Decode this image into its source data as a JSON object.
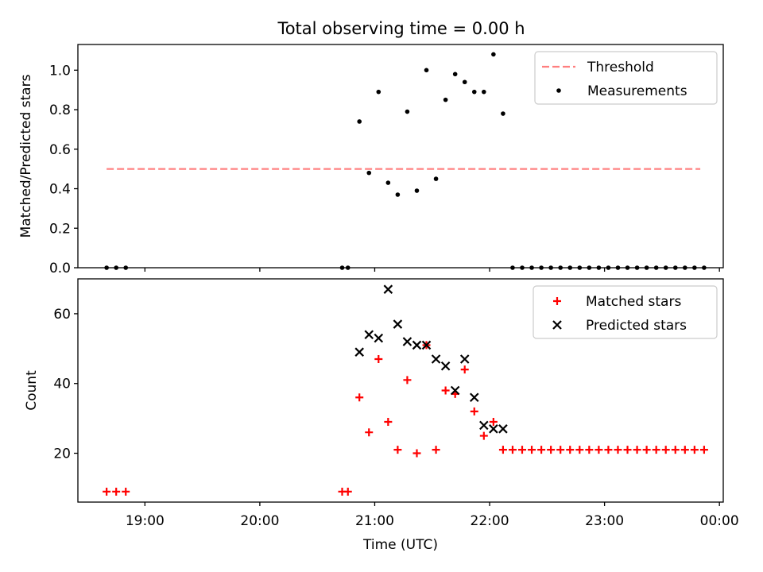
{
  "figure_title": "Total observing time = 0.00 h",
  "colors": {
    "threshold": "#ff7f7f",
    "measurements": "#000000",
    "matched": "#ff0000",
    "predicted": "#000000",
    "axes": "#000000"
  },
  "chart_data": [
    {
      "type": "scatter",
      "title": "Total observing time = 0.00 h",
      "xlabel": "",
      "ylabel": "Matched/Predicted stars",
      "xlim": [
        "18:25",
        "00:02"
      ],
      "ylim": [
        0,
        1.13
      ],
      "yticks": [
        0.0,
        0.2,
        0.4,
        0.6,
        0.8,
        1.0
      ],
      "ytick_labels": [
        "0.0",
        "0.2",
        "0.4",
        "0.6",
        "0.8",
        "1.0"
      ],
      "xtick_labels_shown": false,
      "grid": false,
      "legend": "top-right",
      "series": [
        {
          "name": "Threshold",
          "type": "line",
          "style": "dashed",
          "color": "#ff7f7f",
          "x": [
            "18:40",
            "23:50"
          ],
          "y": [
            0.5,
            0.5
          ]
        },
        {
          "name": "Measurements",
          "type": "scatter",
          "color": "#000000",
          "x": [
            "18:40",
            "18:45",
            "18:50",
            "20:43",
            "20:46",
            "20:52",
            "20:57",
            "21:02",
            "21:07",
            "21:12",
            "21:17",
            "21:22",
            "21:27",
            "21:32",
            "21:37",
            "21:42",
            "21:47",
            "21:52",
            "21:57",
            "22:02",
            "22:07",
            "22:12",
            "22:17",
            "22:22",
            "22:27",
            "22:32",
            "22:37",
            "22:42",
            "22:47",
            "22:52",
            "22:57",
            "23:02",
            "23:07",
            "23:12",
            "23:17",
            "23:22",
            "23:27",
            "23:32",
            "23:37",
            "23:42",
            "23:47",
            "23:52"
          ],
          "y": [
            0.0,
            0.0,
            0.0,
            0.0,
            0.0,
            0.74,
            0.48,
            0.89,
            0.43,
            0.37,
            0.79,
            0.39,
            1.0,
            0.45,
            0.85,
            0.98,
            0.94,
            0.89,
            0.89,
            1.08,
            0.78,
            0.0,
            0.0,
            0.0,
            0.0,
            0.0,
            0.0,
            0.0,
            0.0,
            0.0,
            0.0,
            0.0,
            0.0,
            0.0,
            0.0,
            0.0,
            0.0,
            0.0,
            0.0,
            0.0,
            0.0,
            0.0
          ]
        }
      ]
    },
    {
      "type": "scatter",
      "title": "",
      "xlabel": "Time (UTC)",
      "ylabel": "Count",
      "xlim": [
        "18:25",
        "00:02"
      ],
      "ylim": [
        6,
        70
      ],
      "yticks": [
        20,
        40,
        60
      ],
      "ytick_labels": [
        "20",
        "40",
        "60"
      ],
      "xticks": [
        "19:00",
        "20:00",
        "21:00",
        "22:00",
        "23:00",
        "24:00"
      ],
      "xtick_labels": [
        "19:00",
        "20:00",
        "21:00",
        "22:00",
        "23:00",
        "00:00"
      ],
      "grid": false,
      "legend": "top-right",
      "series": [
        {
          "name": "Matched stars",
          "marker": "plus",
          "color": "#ff0000",
          "x": [
            "18:40",
            "18:45",
            "18:50",
            "20:43",
            "20:46",
            "20:52",
            "20:57",
            "21:02",
            "21:07",
            "21:12",
            "21:17",
            "21:22",
            "21:27",
            "21:32",
            "21:37",
            "21:42",
            "21:47",
            "21:52",
            "21:57",
            "22:02",
            "22:07",
            "22:12",
            "22:17",
            "22:22",
            "22:27",
            "22:32",
            "22:37",
            "22:42",
            "22:47",
            "22:52",
            "22:57",
            "23:02",
            "23:07",
            "23:12",
            "23:17",
            "23:22",
            "23:27",
            "23:32",
            "23:37",
            "23:42",
            "23:47",
            "23:52"
          ],
          "y": [
            9,
            9,
            9,
            9,
            9,
            36,
            26,
            47,
            29,
            21,
            41,
            20,
            51,
            21,
            38,
            37,
            44,
            32,
            25,
            29,
            21,
            21,
            21,
            21,
            21,
            21,
            21,
            21,
            21,
            21,
            21,
            21,
            21,
            21,
            21,
            21,
            21,
            21,
            21,
            21,
            21,
            21
          ]
        },
        {
          "name": "Predicted stars",
          "marker": "x",
          "color": "#000000",
          "x": [
            "20:52",
            "20:57",
            "21:02",
            "21:07",
            "21:12",
            "21:17",
            "21:22",
            "21:27",
            "21:32",
            "21:37",
            "21:42",
            "21:47",
            "21:52",
            "21:57",
            "22:02",
            "22:07"
          ],
          "y": [
            49,
            54,
            53,
            67,
            57,
            52,
            51,
            51,
            47,
            45,
            38,
            47,
            36,
            28,
            27,
            27
          ]
        }
      ]
    }
  ]
}
